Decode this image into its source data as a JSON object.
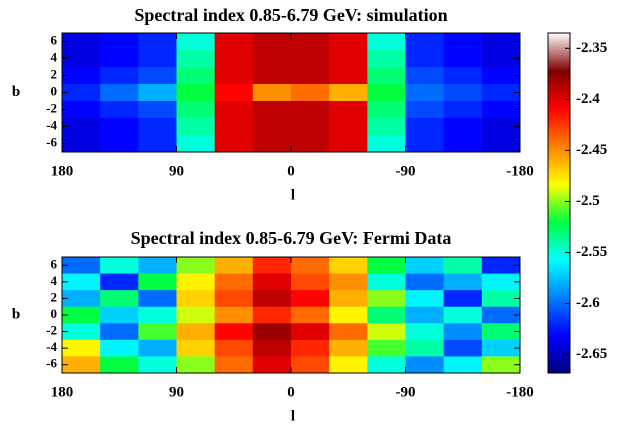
{
  "chart_data": [
    {
      "type": "heatmap",
      "title": "Spectral index 0.85-6.79 GeV: simulation",
      "x_label": "l",
      "y_label": "b",
      "x": [
        165,
        135,
        105,
        75,
        45,
        15,
        -15,
        -45,
        -75,
        -105,
        -135,
        -165
      ],
      "y": [
        6,
        4,
        2,
        0,
        -2,
        -4,
        -6
      ],
      "z": [
        [
          -2.64,
          -2.63,
          -2.62,
          -2.55,
          -2.4,
          -2.39,
          -2.39,
          -2.4,
          -2.55,
          -2.62,
          -2.63,
          -2.64
        ],
        [
          -2.64,
          -2.63,
          -2.62,
          -2.54,
          -2.4,
          -2.39,
          -2.39,
          -2.4,
          -2.54,
          -2.62,
          -2.63,
          -2.64
        ],
        [
          -2.63,
          -2.62,
          -2.61,
          -2.53,
          -2.4,
          -2.39,
          -2.39,
          -2.4,
          -2.53,
          -2.61,
          -2.62,
          -2.63
        ],
        [
          -2.62,
          -2.6,
          -2.58,
          -2.52,
          -2.41,
          -2.45,
          -2.44,
          -2.46,
          -2.52,
          -2.6,
          -2.61,
          -2.62
        ],
        [
          -2.63,
          -2.62,
          -2.61,
          -2.53,
          -2.4,
          -2.39,
          -2.39,
          -2.4,
          -2.53,
          -2.61,
          -2.62,
          -2.63
        ],
        [
          -2.64,
          -2.63,
          -2.62,
          -2.54,
          -2.4,
          -2.39,
          -2.39,
          -2.4,
          -2.54,
          -2.62,
          -2.63,
          -2.64
        ],
        [
          -2.64,
          -2.63,
          -2.62,
          -2.55,
          -2.4,
          -2.39,
          -2.39,
          -2.4,
          -2.55,
          -2.62,
          -2.63,
          -2.64
        ]
      ],
      "xlim": [
        180,
        -180
      ],
      "xticks": [
        180,
        90,
        0,
        -90,
        -180
      ],
      "ylim": [
        -7,
        7
      ],
      "yticks": [
        6,
        4,
        2,
        0,
        -2,
        -4,
        -6
      ]
    },
    {
      "type": "heatmap",
      "title": "Spectral index 0.85-6.79 GeV: Fermi Data",
      "x_label": "l",
      "y_label": "b",
      "x": [
        165,
        135,
        105,
        75,
        45,
        15,
        -15,
        -45,
        -75,
        -105,
        -135,
        -165
      ],
      "y": [
        6,
        4,
        2,
        0,
        -2,
        -4,
        -6
      ],
      "z": [
        [
          -2.6,
          -2.55,
          -2.58,
          -2.5,
          -2.46,
          -2.42,
          -2.44,
          -2.47,
          -2.52,
          -2.57,
          -2.54,
          -2.62
        ],
        [
          -2.56,
          -2.62,
          -2.52,
          -2.48,
          -2.44,
          -2.4,
          -2.43,
          -2.45,
          -2.55,
          -2.6,
          -2.58,
          -2.56
        ],
        [
          -2.58,
          -2.53,
          -2.6,
          -2.47,
          -2.43,
          -2.39,
          -2.41,
          -2.46,
          -2.5,
          -2.56,
          -2.62,
          -2.54
        ],
        [
          -2.52,
          -2.57,
          -2.55,
          -2.49,
          -2.45,
          -2.42,
          -2.44,
          -2.48,
          -2.53,
          -2.58,
          -2.55,
          -2.6
        ],
        [
          -2.55,
          -2.6,
          -2.51,
          -2.46,
          -2.41,
          -2.38,
          -2.4,
          -2.44,
          -2.49,
          -2.55,
          -2.59,
          -2.53
        ],
        [
          -2.48,
          -2.56,
          -2.58,
          -2.47,
          -2.43,
          -2.39,
          -2.42,
          -2.46,
          -2.51,
          -2.54,
          -2.61,
          -2.57
        ],
        [
          -2.46,
          -2.52,
          -2.55,
          -2.5,
          -2.44,
          -2.4,
          -2.43,
          -2.48,
          -2.55,
          -2.59,
          -2.56,
          -2.5
        ]
      ],
      "xlim": [
        180,
        -180
      ],
      "xticks": [
        180,
        90,
        0,
        -90,
        -180
      ],
      "ylim": [
        -7,
        7
      ],
      "yticks": [
        6,
        4,
        2,
        0,
        -2,
        -4,
        -6
      ]
    }
  ],
  "colorbar": {
    "lim": [
      -2.668,
      -2.335
    ],
    "ticks": [
      -2.35,
      -2.4,
      -2.45,
      -2.5,
      -2.55,
      -2.6,
      -2.65
    ],
    "colorscale": [
      "#000080",
      "#0000ff",
      "#0080ff",
      "#00ffff",
      "#00ff40",
      "#ffff00",
      "#ff8000",
      "#ff0000",
      "#800000",
      "#ffffff"
    ]
  }
}
